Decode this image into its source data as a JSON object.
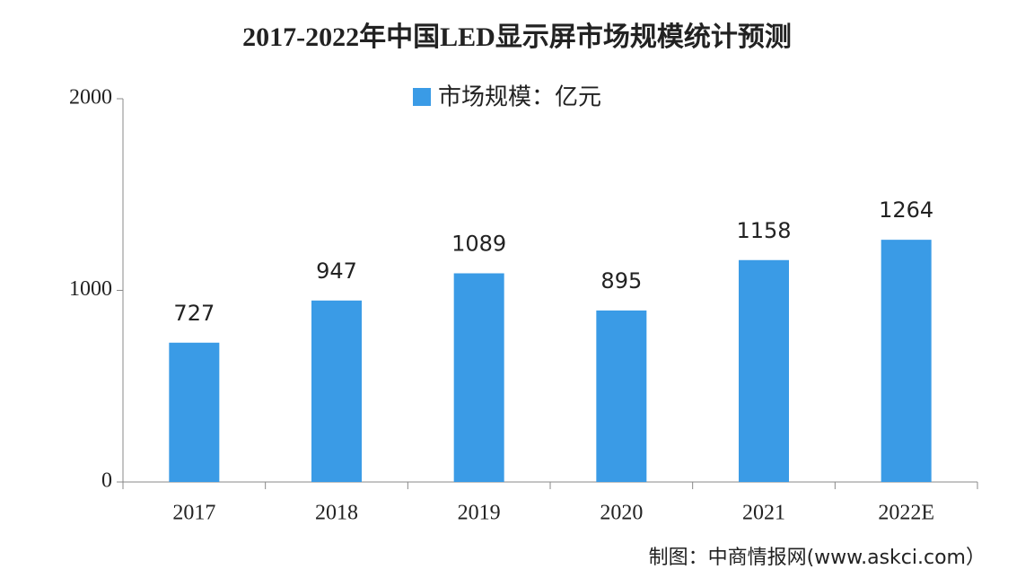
{
  "chart_data": {
    "type": "bar",
    "title": "2017-2022年中国LED显示屏市场规模统计预测",
    "categories": [
      "2017",
      "2018",
      "2019",
      "2020",
      "2021",
      "2022E"
    ],
    "series": [
      {
        "name": "市场规模：亿元",
        "color": "#3a9be6",
        "values": [
          727,
          947,
          1089,
          895,
          1158,
          1264
        ]
      }
    ],
    "ylim": [
      0,
      2000
    ],
    "yticks": [
      0,
      1000,
      2000
    ],
    "legend": "top",
    "source": "制图：中商情报网(www.askci.com）"
  }
}
